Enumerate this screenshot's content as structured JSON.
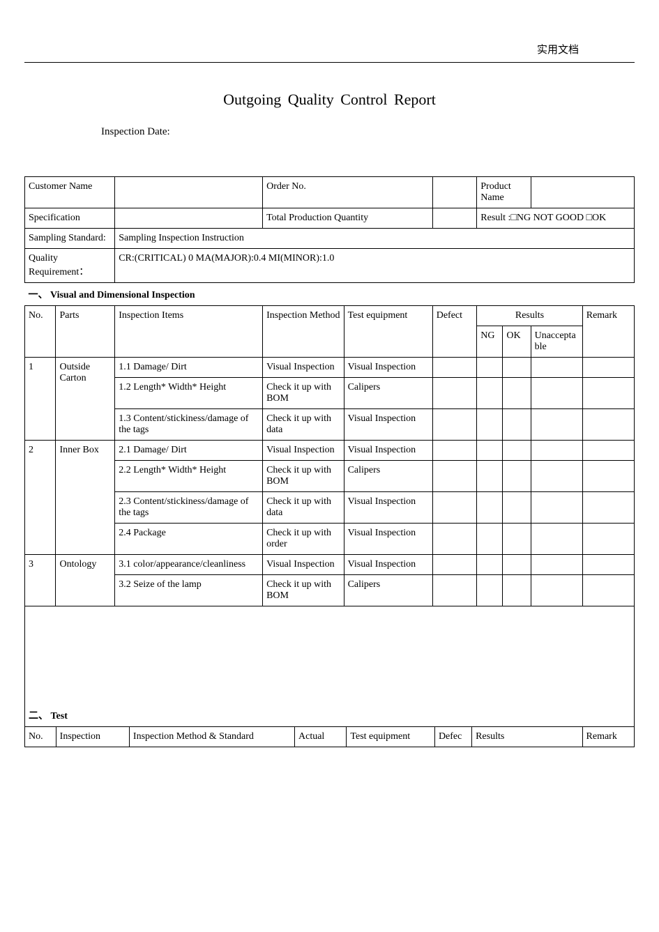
{
  "meta": {
    "corner_label": "实用文档",
    "title": "Outgoing  Quality  Control  Report",
    "inspection_date_label": "Inspection  Date:"
  },
  "info": {
    "customer_name_label": "Customer Name",
    "customer_name_value": "",
    "order_no_label": "Order  No.",
    "order_no_value": "",
    "product_name_label": "Product Name",
    "product_name_value": "",
    "specification_label": "Specification",
    "specification_value": "",
    "total_qty_label": "Total Production Quantity",
    "total_qty_value": "",
    "result_label": "Result :□NG    NOT  GOOD  □OK",
    "sampling_std_label": "Sampling Standard:",
    "sampling_std_value": "Sampling  Inspection  Instruction",
    "quality_req_label": "Quality Requirement：",
    "quality_req_value": "CR:(CRITICAL)  0     MA(MAJOR):0.4  MI(MINOR):1.0"
  },
  "section1_title_prefix": "一、",
  "section1_title": "Visual  and  Dimensional  Inspection",
  "cols1": {
    "no": "No.",
    "parts": "Parts",
    "items": "Inspection  Items",
    "method": "Inspection Method",
    "equip": "Test  equipment",
    "defect": "Defect",
    "results": "Results",
    "ng": "NG",
    "ok": "OK",
    "unacc": "Unacceptable",
    "remark": "Remark"
  },
  "rows1": [
    {
      "no": "1",
      "parts": "Outside Carton",
      "item": "1.1 Damage/ Dirt",
      "method": "Visual Inspection",
      "equip": "Visual Inspection"
    },
    {
      "no": "",
      "parts": "",
      "item": "1.2   Length*   Width* Height",
      "method": "Check   it   up with  BOM",
      "equip": "Calipers"
    },
    {
      "no": "",
      "parts": "",
      "item": "1.3 Content/stickiness/damage of  the  tags",
      "method": "Check   it   up with  data",
      "equip": "Visual Inspection"
    },
    {
      "no": "2",
      "parts": "Inner Box",
      "item": "2.1 Damage/ Dirt",
      "method": "Visual Inspection",
      "equip": "Visual Inspection"
    },
    {
      "no": "",
      "parts": "",
      "item": "2.2   Length*   Width* Height",
      "method": "Check   it   up with  BOM",
      "equip": "Calipers"
    },
    {
      "no": "",
      "parts": "",
      "item": "2.3 Content/stickiness/damage of  the  tags",
      "method": "Check   it   up with  data",
      "equip": "Visual Inspection"
    },
    {
      "no": "",
      "parts": "",
      "item": "2.4  Package",
      "method": "Check   it   up with  order",
      "equip": "Visual Inspection"
    },
    {
      "no": "3",
      "parts": "Ontology",
      "item": "3.1 color/appearance/cleanliness",
      "method": "Visual Inspection",
      "equip": "Visual Inspection"
    },
    {
      "no": "",
      "parts": "",
      "item": "3.2  Seize  of  the  lamp",
      "method": "Check   it   up with  BOM",
      "equip": "Calipers"
    }
  ],
  "rowspans1": {
    "1": 3,
    "2": 4,
    "3": 2
  },
  "blank_row_height": 140,
  "section2_title_prefix": "二、",
  "section2_title": "Test",
  "cols2": {
    "no": "No.",
    "insp": "Inspection",
    "method_std": "Inspection  Method  &  Standard",
    "actual": "Actual",
    "equip": "Test  equipment",
    "defec": "Defec",
    "results": "Results",
    "remark": "Remark"
  },
  "colors": {
    "text": "#000000",
    "border": "#000000",
    "background": "#ffffff"
  },
  "col_widths1": [
    "42",
    "80",
    "200",
    "110",
    "120",
    "60",
    "35",
    "38",
    "70",
    "70"
  ],
  "col_widths2": [
    "42",
    "99",
    "223",
    "70",
    "119",
    "50",
    "149",
    "70"
  ]
}
